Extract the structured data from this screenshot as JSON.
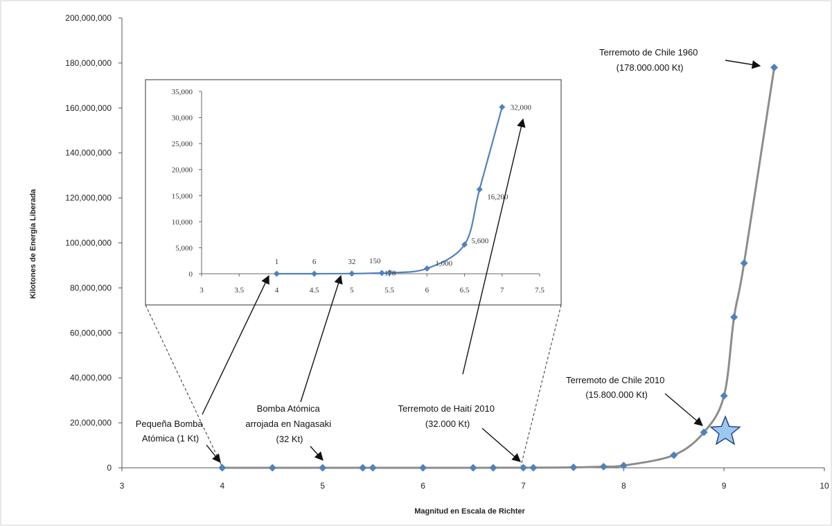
{
  "chart_data": {
    "type": "line",
    "title": "",
    "xlabel": "Magnitud en Escala de Richter",
    "ylabel": "Kilotones de Energía Liberada",
    "xlim": [
      3,
      10
    ],
    "ylim": [
      0,
      200000000
    ],
    "x_ticks": [
      "3",
      "4",
      "5",
      "6",
      "7",
      "8",
      "9",
      "10"
    ],
    "y_ticks": [
      "0",
      "20,000,000",
      "40,000,000",
      "60,000,000",
      "80,000,000",
      "100,000,000",
      "120,000,000",
      "140,000,000",
      "160,000,000",
      "180,000,000",
      "200,000,000"
    ],
    "grid": false,
    "series": [
      {
        "x": [
          4,
          4.5,
          5,
          5.4,
          5.5,
          6,
          6.5,
          6.7,
          7,
          7.1,
          7.5,
          7.8,
          8,
          8.5,
          8.8,
          9,
          9.1,
          9.2,
          9.5
        ],
        "y": [
          1,
          6,
          32,
          150,
          178,
          1000,
          5600,
          16200,
          32000,
          50000,
          180000,
          500000,
          1000000,
          5600000,
          15800000,
          32000000,
          67000000,
          91000000,
          178000000
        ]
      }
    ],
    "inset": {
      "type": "line",
      "xlim": [
        3,
        7.5
      ],
      "ylim": [
        0,
        35000
      ],
      "x_ticks": [
        "3",
        "3.5",
        "4",
        "4.5",
        "5",
        "5.5",
        "6",
        "6.5",
        "7",
        "7.5"
      ],
      "y_ticks": [
        "0",
        "5,000",
        "10,000",
        "15,000",
        "20,000",
        "25,000",
        "30,000",
        "35,000"
      ],
      "x": [
        4,
        4.5,
        5,
        5.4,
        5.5,
        6,
        6.5,
        6.7,
        7
      ],
      "y": [
        1,
        6,
        32,
        150,
        178,
        1000,
        5600,
        16200,
        32000
      ],
      "data_labels": [
        "1",
        "6",
        "32",
        "150",
        "178",
        "1,000",
        "5,600",
        "16,200",
        "32,000"
      ]
    },
    "annotations": [
      {
        "lines": [
          "Terremoto de Chile 1960",
          "(178.000.000 Kt)"
        ]
      },
      {
        "lines": [
          "Terremoto de Chile 2010",
          "(15.800.000 Kt)"
        ]
      },
      {
        "lines": [
          "Terremoto de Haití 2010",
          "(32.000 Kt)"
        ]
      },
      {
        "lines": [
          "Bomba Atómica",
          "arrojada en Nagasaki",
          "(32 Kt)"
        ]
      },
      {
        "lines": [
          "Pequeña Bomba",
          "Atómica (1 Kt)"
        ]
      }
    ],
    "colors": {
      "marker": "#4f81bd",
      "main_line": "#8c8c8c",
      "inset_line": "#4f81bd",
      "star": "#9cc8f0"
    }
  }
}
